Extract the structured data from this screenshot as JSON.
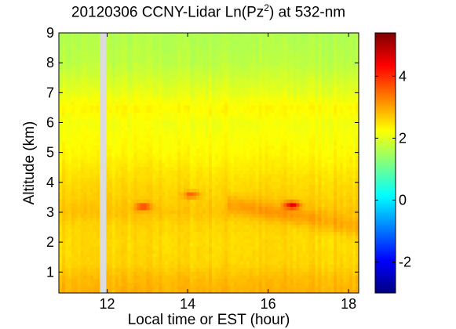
{
  "chart_data": {
    "type": "heatmap",
    "title_prefix": "20120306 CCNY-Lidar Ln(Pz",
    "title_sup": "2",
    "title_suffix": ") at 532-nm",
    "xlabel": "Local time or EST (hour)",
    "ylabel": "Altitude (km)",
    "xlim": [
      10.8,
      18.25
    ],
    "ylim": [
      0.3,
      9
    ],
    "xticks": [
      12,
      14,
      16,
      18
    ],
    "yticks": [
      1,
      2,
      3,
      4,
      5,
      6,
      7,
      8,
      9
    ],
    "colorbar": {
      "clim": [
        -3,
        5.4
      ],
      "ticks": [
        -2,
        0,
        2,
        4
      ],
      "colormap": "jet"
    },
    "data_gap_hour": 11.9,
    "altitude_profile": [
      {
        "alt": 0.3,
        "value": 2.9
      },
      {
        "alt": 0.8,
        "value": 2.8
      },
      {
        "alt": 1.3,
        "value": 2.6
      },
      {
        "alt": 2.0,
        "value": 2.55
      },
      {
        "alt": 2.6,
        "value": 2.6
      },
      {
        "alt": 3.0,
        "value": 2.75
      },
      {
        "alt": 3.5,
        "value": 2.65
      },
      {
        "alt": 4.2,
        "value": 2.5
      },
      {
        "alt": 5.0,
        "value": 2.3
      },
      {
        "alt": 6.0,
        "value": 2.15
      },
      {
        "alt": 6.5,
        "value": 2.3
      },
      {
        "alt": 7.0,
        "value": 2.05
      },
      {
        "alt": 8.0,
        "value": 1.7
      },
      {
        "alt": 9.0,
        "value": 1.6
      }
    ],
    "features": [
      {
        "hour": 16.6,
        "alt": 3.25,
        "value": 4.5
      },
      {
        "hour": 12.9,
        "alt": 3.2,
        "value": 3.9
      },
      {
        "hour": 14.1,
        "alt": 3.6,
        "value": 3.6
      }
    ]
  }
}
